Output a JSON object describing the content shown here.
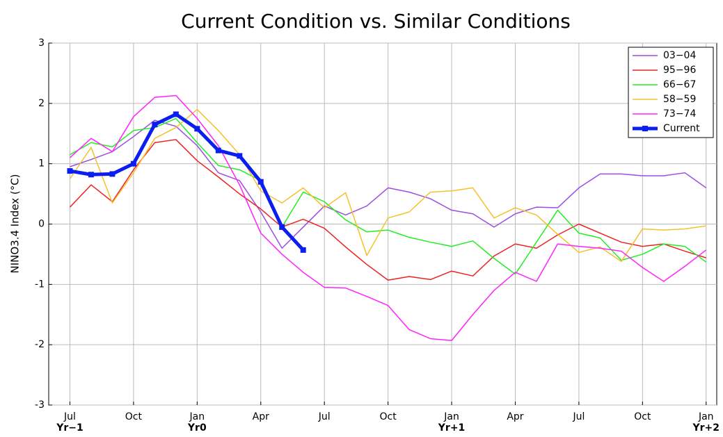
{
  "chart_data": {
    "type": "line",
    "title": "Current Condition vs. Similar Conditions",
    "y_label": "NINO3.4 Index (°C)",
    "x": [
      0,
      1,
      2,
      3,
      4,
      5,
      6,
      7,
      8,
      9,
      10,
      11,
      12,
      13,
      14,
      15,
      16,
      17,
      18,
      19,
      20,
      21,
      22,
      23,
      24,
      25,
      26,
      27,
      28,
      29,
      30
    ],
    "xlim": [
      -1,
      30.5
    ],
    "xticks": [
      {
        "value": 0,
        "label": "Jul"
      },
      {
        "value": 3,
        "label": "Oct"
      },
      {
        "value": 6,
        "label": "Jan"
      },
      {
        "value": 9,
        "label": "Apr"
      },
      {
        "value": 12,
        "label": "Jul"
      },
      {
        "value": 15,
        "label": "Oct"
      },
      {
        "value": 18,
        "label": "Jan"
      },
      {
        "value": 21,
        "label": "Apr"
      },
      {
        "value": 24,
        "label": "Jul"
      },
      {
        "value": 27,
        "label": "Oct"
      },
      {
        "value": 30,
        "label": "Jan"
      }
    ],
    "xtick_years": [
      {
        "value": 0,
        "label": "Yr−1"
      },
      {
        "value": 6,
        "label": "Yr0"
      },
      {
        "value": 18,
        "label": "Yr+1"
      },
      {
        "value": 30,
        "label": "Yr+2"
      }
    ],
    "ylim": [
      -3,
      3
    ],
    "yticks": [
      -3,
      -2,
      -1,
      0,
      1,
      2,
      3
    ],
    "grid": true,
    "legend": "upper right",
    "series": [
      {
        "name": "03−04",
        "color": "#9a4fe0",
        "width": 1.5,
        "values": [
          0.95,
          1.07,
          1.2,
          1.45,
          1.72,
          1.62,
          1.3,
          0.85,
          0.72,
          0.2,
          -0.4,
          -0.05,
          0.3,
          0.15,
          0.3,
          0.6,
          0.53,
          0.42,
          0.23,
          0.17,
          -0.05,
          0.17,
          0.28,
          0.27,
          0.6,
          0.83,
          0.83,
          0.8,
          0.8,
          0.85,
          0.6
        ]
      },
      {
        "name": "95−96",
        "color": "#ee2222",
        "width": 1.5,
        "values": [
          0.28,
          0.65,
          0.37,
          0.9,
          1.35,
          1.4,
          1.05,
          0.78,
          0.5,
          0.25,
          -0.05,
          0.08,
          -0.07,
          -0.38,
          -0.67,
          -0.93,
          -0.87,
          -0.92,
          -0.78,
          -0.86,
          -0.53,
          -0.33,
          -0.4,
          -0.18,
          0.0,
          -0.15,
          -0.3,
          -0.37,
          -0.33,
          -0.45,
          -0.56
        ]
      },
      {
        "name": "66−67",
        "color": "#22ee22",
        "width": 1.5,
        "values": [
          1.15,
          1.35,
          1.28,
          1.55,
          1.6,
          1.75,
          1.35,
          0.97,
          0.9,
          0.72,
          -0.05,
          0.53,
          0.37,
          0.07,
          -0.13,
          -0.1,
          -0.22,
          -0.3,
          -0.37,
          -0.28,
          -0.57,
          -0.83,
          -0.3,
          0.23,
          -0.15,
          -0.23,
          -0.6,
          -0.5,
          -0.33,
          -0.37,
          -0.63
        ]
      },
      {
        "name": "58−59",
        "color": "#f5c02a",
        "width": 1.5,
        "values": [
          0.75,
          1.27,
          0.35,
          0.85,
          1.42,
          1.6,
          1.9,
          1.55,
          1.15,
          0.55,
          0.35,
          0.6,
          0.27,
          0.52,
          -0.52,
          0.1,
          0.2,
          0.53,
          0.55,
          0.6,
          0.1,
          0.27,
          0.15,
          -0.17,
          -0.47,
          -0.38,
          -0.62,
          -0.08,
          -0.1,
          -0.08,
          -0.03
        ]
      },
      {
        "name": "73−74",
        "color": "#ff22ff",
        "width": 1.5,
        "values": [
          1.1,
          1.42,
          1.2,
          1.78,
          2.1,
          2.13,
          1.75,
          1.3,
          0.65,
          -0.15,
          -0.5,
          -0.8,
          -1.05,
          -1.06,
          -1.2,
          -1.35,
          -1.75,
          -1.9,
          -1.93,
          -1.5,
          -1.1,
          -0.8,
          -0.95,
          -0.33,
          -0.37,
          -0.4,
          -0.45,
          -0.72,
          -0.95,
          -0.7,
          -0.43
        ]
      },
      {
        "name": "Current",
        "color": "#0a1ef0",
        "width": 5,
        "marker": "square",
        "values": [
          0.88,
          0.82,
          0.83,
          1.0,
          1.65,
          1.82,
          1.58,
          1.22,
          1.13,
          0.7,
          -0.05,
          -0.43,
          null,
          null,
          null,
          null,
          null,
          null,
          null,
          null,
          null,
          null,
          null,
          null,
          null,
          null,
          null,
          null,
          null,
          null,
          null
        ]
      }
    ]
  }
}
